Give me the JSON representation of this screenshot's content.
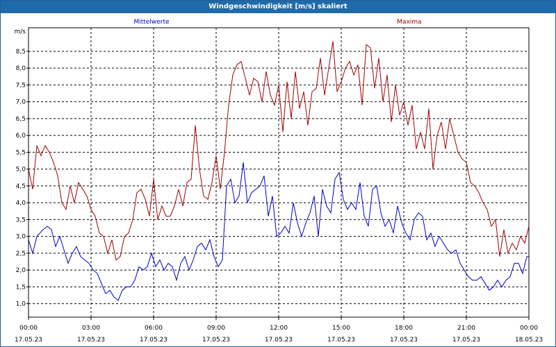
{
  "window": {
    "title": "Windgeschwindigkeit [m/s] skaliert"
  },
  "chart_data": {
    "type": "line",
    "title": "Windgeschwindigkeit [m/s] skaliert",
    "ylabel": "m/s",
    "xlabel": "",
    "ylim": [
      0.6,
      9.2
    ],
    "xlim_hours": [
      0,
      24
    ],
    "grid": true,
    "legend": "top",
    "y_ticks": [
      1.0,
      1.5,
      2.0,
      2.5,
      3.0,
      3.5,
      4.0,
      4.5,
      5.0,
      5.5,
      6.0,
      6.5,
      7.0,
      7.5,
      8.0,
      8.5
    ],
    "y_tick_labels": [
      "1,0",
      "1,5",
      "2,0",
      "2,5",
      "3,0",
      "3,5",
      "4,0",
      "4,5",
      "5,0",
      "5,5",
      "6,0",
      "6,5",
      "7,0",
      "7,5",
      "8,0",
      "8,5"
    ],
    "x_ticks": [
      {
        "hour": 0,
        "time": "00:00",
        "date": "17.05.23"
      },
      {
        "hour": 3,
        "time": "03:00",
        "date": "17.05.23"
      },
      {
        "hour": 6,
        "time": "06:00",
        "date": "17.05.23"
      },
      {
        "hour": 9,
        "time": "09:00",
        "date": "17.05.23"
      },
      {
        "hour": 12,
        "time": "12:00",
        "date": "17.05.23"
      },
      {
        "hour": 15,
        "time": "15:00",
        "date": "17.05.23"
      },
      {
        "hour": 18,
        "time": "18:00",
        "date": "17.05.23"
      },
      {
        "hour": 21,
        "time": "21:00",
        "date": "17.05.23"
      },
      {
        "hour": 24,
        "time": "00:00",
        "date": "18.05.23"
      }
    ],
    "series": [
      {
        "name": "Mittelwerte",
        "color": "#0000c8",
        "points": [
          [
            0.0,
            2.9
          ],
          [
            0.2,
            2.5
          ],
          [
            0.4,
            3.0
          ],
          [
            0.7,
            3.2
          ],
          [
            0.9,
            3.3
          ],
          [
            1.1,
            3.2
          ],
          [
            1.3,
            2.7
          ],
          [
            1.5,
            3.0
          ],
          [
            1.7,
            2.6
          ],
          [
            1.9,
            2.2
          ],
          [
            2.1,
            2.5
          ],
          [
            2.3,
            2.7
          ],
          [
            2.5,
            2.4
          ],
          [
            2.7,
            2.3
          ],
          [
            2.9,
            2.2
          ],
          [
            3.1,
            2.0
          ],
          [
            3.3,
            1.9
          ],
          [
            3.5,
            1.6
          ],
          [
            3.7,
            1.3
          ],
          [
            3.9,
            1.4
          ],
          [
            4.1,
            1.2
          ],
          [
            4.3,
            1.1
          ],
          [
            4.5,
            1.4
          ],
          [
            4.7,
            1.5
          ],
          [
            4.9,
            1.5
          ],
          [
            5.1,
            1.7
          ],
          [
            5.3,
            2.1
          ],
          [
            5.5,
            2.0
          ],
          [
            5.7,
            2.1
          ],
          [
            5.9,
            2.5
          ],
          [
            6.1,
            2.1
          ],
          [
            6.3,
            2.3
          ],
          [
            6.5,
            2.0
          ],
          [
            6.7,
            2.2
          ],
          [
            6.9,
            2.1
          ],
          [
            7.1,
            1.7
          ],
          [
            7.3,
            2.2
          ],
          [
            7.5,
            2.4
          ],
          [
            7.7,
            2.0
          ],
          [
            7.9,
            2.3
          ],
          [
            8.1,
            2.7
          ],
          [
            8.3,
            2.8
          ],
          [
            8.5,
            2.6
          ],
          [
            8.7,
            2.9
          ],
          [
            8.9,
            2.4
          ],
          [
            9.1,
            2.1
          ],
          [
            9.3,
            2.3
          ],
          [
            9.5,
            4.5
          ],
          [
            9.7,
            4.7
          ],
          [
            9.9,
            4.0
          ],
          [
            10.1,
            4.2
          ],
          [
            10.3,
            5.2
          ],
          [
            10.5,
            4.0
          ],
          [
            10.7,
            4.3
          ],
          [
            10.9,
            4.4
          ],
          [
            11.1,
            4.5
          ],
          [
            11.3,
            4.8
          ],
          [
            11.5,
            3.6
          ],
          [
            11.7,
            4.2
          ],
          [
            11.9,
            3.0
          ],
          [
            12.1,
            3.1
          ],
          [
            12.3,
            3.3
          ],
          [
            12.5,
            3.1
          ],
          [
            12.7,
            4.0
          ],
          [
            12.9,
            3.4
          ],
          [
            13.1,
            3.0
          ],
          [
            13.3,
            3.4
          ],
          [
            13.5,
            3.7
          ],
          [
            13.7,
            4.2
          ],
          [
            13.9,
            3.0
          ],
          [
            14.1,
            4.4
          ],
          [
            14.3,
            3.9
          ],
          [
            14.5,
            3.7
          ],
          [
            14.7,
            4.7
          ],
          [
            14.9,
            4.9
          ],
          [
            15.1,
            4.1
          ],
          [
            15.3,
            3.8
          ],
          [
            15.5,
            4.0
          ],
          [
            15.7,
            3.8
          ],
          [
            15.9,
            4.6
          ],
          [
            16.1,
            3.6
          ],
          [
            16.3,
            3.3
          ],
          [
            16.5,
            4.4
          ],
          [
            16.7,
            4.5
          ],
          [
            16.9,
            3.7
          ],
          [
            17.1,
            3.3
          ],
          [
            17.3,
            3.5
          ],
          [
            17.5,
            3.1
          ],
          [
            17.7,
            3.9
          ],
          [
            17.9,
            3.4
          ],
          [
            18.1,
            3.1
          ],
          [
            18.3,
            2.9
          ],
          [
            18.5,
            3.5
          ],
          [
            18.7,
            3.7
          ],
          [
            18.9,
            3.6
          ],
          [
            19.1,
            2.9
          ],
          [
            19.3,
            3.1
          ],
          [
            19.5,
            2.7
          ],
          [
            19.7,
            3.0
          ],
          [
            19.9,
            2.8
          ],
          [
            20.1,
            2.6
          ],
          [
            20.3,
            2.5
          ],
          [
            20.5,
            2.6
          ],
          [
            20.7,
            2.2
          ],
          [
            20.9,
            2.0
          ],
          [
            21.1,
            1.8
          ],
          [
            21.3,
            1.7
          ],
          [
            21.5,
            1.7
          ],
          [
            21.7,
            1.8
          ],
          [
            21.9,
            1.6
          ],
          [
            22.1,
            1.4
          ],
          [
            22.3,
            1.5
          ],
          [
            22.5,
            1.7
          ],
          [
            22.7,
            1.5
          ],
          [
            22.9,
            1.7
          ],
          [
            23.1,
            1.8
          ],
          [
            23.3,
            2.2
          ],
          [
            23.5,
            2.2
          ],
          [
            23.7,
            1.9
          ],
          [
            23.9,
            2.4
          ],
          [
            24.0,
            2.4
          ]
        ]
      },
      {
        "name": "Maxima",
        "color": "#a00000",
        "points": [
          [
            0.0,
            5.0
          ],
          [
            0.2,
            4.4
          ],
          [
            0.4,
            5.7
          ],
          [
            0.6,
            5.4
          ],
          [
            0.8,
            5.7
          ],
          [
            1.0,
            5.5
          ],
          [
            1.2,
            5.2
          ],
          [
            1.4,
            4.8
          ],
          [
            1.6,
            4.0
          ],
          [
            1.8,
            3.8
          ],
          [
            2.0,
            4.5
          ],
          [
            2.2,
            4.0
          ],
          [
            2.4,
            4.6
          ],
          [
            2.6,
            4.4
          ],
          [
            2.8,
            4.2
          ],
          [
            3.0,
            3.8
          ],
          [
            3.2,
            3.6
          ],
          [
            3.4,
            3.1
          ],
          [
            3.6,
            3.0
          ],
          [
            3.8,
            2.5
          ],
          [
            4.0,
            2.9
          ],
          [
            4.2,
            2.3
          ],
          [
            4.4,
            2.4
          ],
          [
            4.6,
            3.0
          ],
          [
            4.8,
            3.1
          ],
          [
            5.0,
            3.5
          ],
          [
            5.2,
            4.3
          ],
          [
            5.4,
            4.4
          ],
          [
            5.6,
            4.1
          ],
          [
            5.8,
            3.6
          ],
          [
            6.0,
            4.7
          ],
          [
            6.2,
            3.5
          ],
          [
            6.4,
            3.9
          ],
          [
            6.6,
            3.6
          ],
          [
            6.8,
            3.6
          ],
          [
            7.0,
            3.9
          ],
          [
            7.2,
            4.4
          ],
          [
            7.4,
            3.9
          ],
          [
            7.6,
            4.6
          ],
          [
            7.8,
            4.7
          ],
          [
            8.0,
            6.3
          ],
          [
            8.2,
            5.0
          ],
          [
            8.4,
            4.2
          ],
          [
            8.6,
            4.1
          ],
          [
            8.8,
            4.6
          ],
          [
            9.0,
            5.4
          ],
          [
            9.2,
            4.4
          ],
          [
            9.4,
            5.5
          ],
          [
            9.6,
            6.9
          ],
          [
            9.8,
            7.8
          ],
          [
            10.0,
            8.1
          ],
          [
            10.2,
            8.2
          ],
          [
            10.4,
            7.7
          ],
          [
            10.6,
            7.2
          ],
          [
            10.8,
            7.7
          ],
          [
            11.0,
            7.6
          ],
          [
            11.2,
            7.0
          ],
          [
            11.4,
            7.9
          ],
          [
            11.6,
            7.2
          ],
          [
            11.8,
            6.9
          ],
          [
            12.0,
            7.5
          ],
          [
            12.2,
            6.1
          ],
          [
            12.4,
            7.6
          ],
          [
            12.6,
            6.5
          ],
          [
            12.8,
            7.9
          ],
          [
            13.0,
            6.8
          ],
          [
            13.2,
            7.3
          ],
          [
            13.4,
            6.3
          ],
          [
            13.6,
            7.3
          ],
          [
            13.8,
            7.4
          ],
          [
            14.0,
            8.3
          ],
          [
            14.2,
            7.2
          ],
          [
            14.4,
            8.0
          ],
          [
            14.6,
            8.8
          ],
          [
            14.8,
            7.3
          ],
          [
            15.0,
            7.6
          ],
          [
            15.2,
            8.0
          ],
          [
            15.4,
            8.2
          ],
          [
            15.6,
            7.8
          ],
          [
            15.8,
            8.1
          ],
          [
            16.0,
            6.9
          ],
          [
            16.2,
            8.7
          ],
          [
            16.4,
            8.6
          ],
          [
            16.6,
            7.4
          ],
          [
            16.8,
            8.3
          ],
          [
            17.0,
            7.0
          ],
          [
            17.2,
            7.8
          ],
          [
            17.4,
            6.4
          ],
          [
            17.6,
            7.5
          ],
          [
            17.8,
            6.6
          ],
          [
            18.0,
            7.0
          ],
          [
            18.2,
            6.3
          ],
          [
            18.4,
            6.9
          ],
          [
            18.6,
            5.6
          ],
          [
            18.8,
            6.1
          ],
          [
            19.0,
            5.6
          ],
          [
            19.2,
            6.8
          ],
          [
            19.4,
            5.0
          ],
          [
            19.6,
            6.0
          ],
          [
            19.8,
            6.4
          ],
          [
            20.0,
            5.6
          ],
          [
            20.2,
            6.5
          ],
          [
            20.4,
            6.0
          ],
          [
            20.6,
            5.5
          ],
          [
            20.8,
            5.3
          ],
          [
            21.0,
            5.2
          ],
          [
            21.2,
            4.6
          ],
          [
            21.4,
            4.5
          ],
          [
            21.6,
            4.3
          ],
          [
            21.8,
            4.0
          ],
          [
            22.0,
            3.8
          ],
          [
            22.2,
            3.3
          ],
          [
            22.4,
            3.5
          ],
          [
            22.6,
            2.4
          ],
          [
            22.8,
            3.2
          ],
          [
            23.0,
            2.5
          ],
          [
            23.2,
            2.8
          ],
          [
            23.4,
            2.6
          ],
          [
            23.6,
            3.0
          ],
          [
            23.8,
            2.8
          ],
          [
            24.0,
            3.3
          ]
        ]
      }
    ]
  }
}
